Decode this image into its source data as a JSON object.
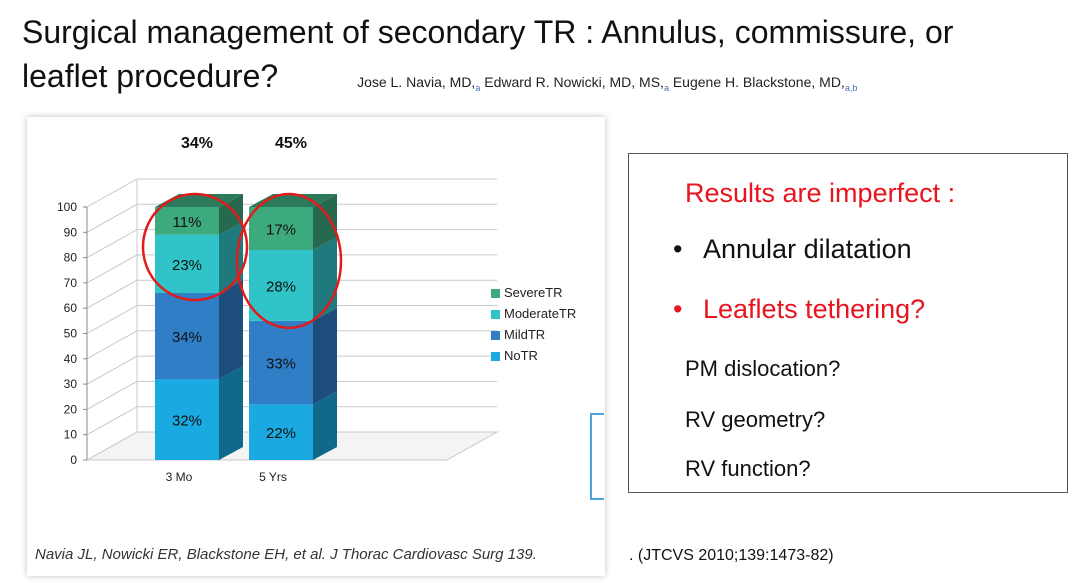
{
  "slide": {
    "title_line1": "Surgical management of secondary TR : Annulus, commissure, or",
    "title_line2": "leaflet procedure?",
    "authors": [
      {
        "name": "Jose L. Navia, MD,",
        "sup": "a"
      },
      {
        "name": " Edward R. Nowicki, MD, MS,",
        "sup": "a"
      },
      {
        "name": " Eugene H. Blackstone, MD,",
        "sup": "a,b"
      }
    ],
    "citation": "Navia JL, Nowicki ER, Blackstone EH, et al. J Thorac Cardiovasc Surg 139.",
    "reference": ". (JTCVS 2010;139:1473-82)"
  },
  "results": {
    "heading": "Results are imperfect :",
    "bullet1": "Annular dilatation",
    "bullet2": "Leaflets  tethering?",
    "q1": "PM dislocation?",
    "q2": "RV geometry?",
    "q3": "RV function?",
    "bullet_glyph": "•"
  },
  "colors": {
    "heading_red": "#e8141e",
    "circle_red": "#e21b1b",
    "severe": "#3daa7e",
    "moderate": "#30c4c8",
    "mild": "#2f7ec6",
    "no": "#1aa9e0"
  },
  "chart_data": {
    "type": "bar",
    "stacked": true,
    "three_d": true,
    "categories": [
      "3 Mo",
      "5 Yrs"
    ],
    "top_labels": [
      "34%",
      "45%"
    ],
    "series": [
      {
        "name": "NoTR",
        "values": [
          32,
          22
        ],
        "labels": [
          "32%",
          "22%"
        ]
      },
      {
        "name": "MildTR",
        "values": [
          34,
          33
        ],
        "labels": [
          "34%",
          "33%"
        ]
      },
      {
        "name": "ModerateTR",
        "values": [
          23,
          28
        ],
        "labels": [
          "23%",
          "28%"
        ]
      },
      {
        "name": "SevereTR",
        "values": [
          11,
          17
        ],
        "labels": [
          "11%",
          "17%"
        ]
      }
    ],
    "legend_order": [
      "SevereTR",
      "ModerateTR",
      "MildTR",
      "NoTR"
    ],
    "legend_position": "right",
    "ylim": [
      0,
      100
    ],
    "yticks": [
      0,
      10,
      20,
      30,
      40,
      50,
      60,
      70,
      80,
      90,
      100
    ],
    "grid": true,
    "highlighted_series": [
      "SevereTR",
      "ModerateTR"
    ]
  }
}
